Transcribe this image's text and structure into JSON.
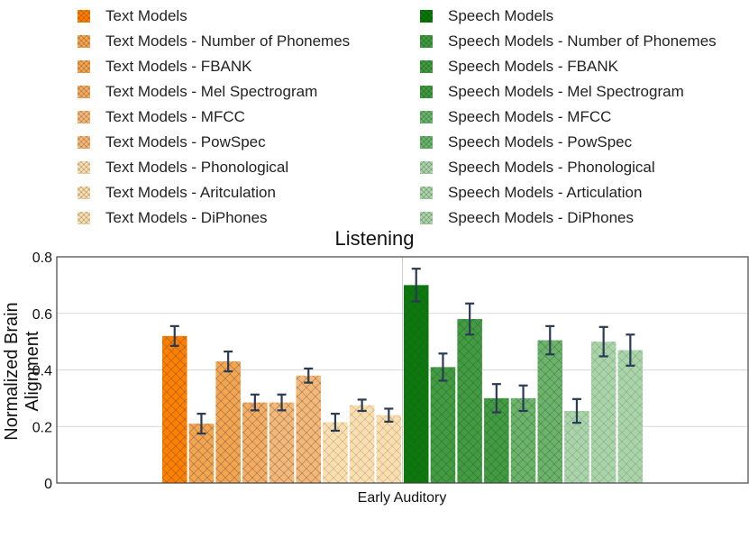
{
  "chart_data": {
    "type": "bar",
    "title": "Listening",
    "xlabel": "",
    "ylabel": "Normalized Brain Alignment",
    "categories": [
      "Early Auditory"
    ],
    "ylim": [
      0,
      0.8
    ],
    "yticks": [
      0,
      0.2,
      0.4,
      0.6,
      0.8
    ],
    "ytick_labels": [
      "0",
      "0.2",
      "0.4",
      "0.6",
      "0.8"
    ],
    "grid": true,
    "legend_position": "top",
    "series": [
      {
        "name": "Text Models",
        "value": 0.52,
        "err": 0.035,
        "color": "#ff8000",
        "hatch": "dense",
        "group": "text"
      },
      {
        "name": "Text Models - Number of Phonemes",
        "value": 0.21,
        "err": 0.035,
        "color": "#f4a550",
        "hatch": "dense",
        "group": "text"
      },
      {
        "name": "Text Models - FBANK",
        "value": 0.43,
        "err": 0.035,
        "color": "#f4a550",
        "hatch": "dense",
        "group": "text"
      },
      {
        "name": "Text Models - Mel Spectrogram",
        "value": 0.285,
        "err": 0.028,
        "color": "#f4ad62",
        "hatch": "dense",
        "group": "text"
      },
      {
        "name": "Text Models - MFCC",
        "value": 0.285,
        "err": 0.028,
        "color": "#f6b877",
        "hatch": "dense",
        "group": "text"
      },
      {
        "name": "Text Models - PowSpec",
        "value": 0.38,
        "err": 0.025,
        "color": "#f6b877",
        "hatch": "dense",
        "group": "text"
      },
      {
        "name": "Text Models - Phonological",
        "value": 0.215,
        "err": 0.03,
        "color": "#fbdfae",
        "hatch": "light",
        "group": "text"
      },
      {
        "name": "Text Models - Aritculation",
        "value": 0.275,
        "err": 0.02,
        "color": "#fbdfae",
        "hatch": "light",
        "group": "text"
      },
      {
        "name": "Text Models - DiPhones",
        "value": 0.24,
        "err": 0.023,
        "color": "#fbdfae",
        "hatch": "light",
        "group": "text"
      },
      {
        "name": "Speech Models",
        "value": 0.7,
        "err": 0.058,
        "color": "#0a7a0a",
        "hatch": "dense",
        "group": "speech"
      },
      {
        "name": "Speech Models - Number of Phonemes",
        "value": 0.41,
        "err": 0.048,
        "color": "#3f9c3f",
        "hatch": "dense",
        "group": "speech"
      },
      {
        "name": "Speech Models - FBANK",
        "value": 0.58,
        "err": 0.055,
        "color": "#3f9c3f",
        "hatch": "dense",
        "group": "speech"
      },
      {
        "name": "Speech Models - Mel Spectrogram",
        "value": 0.3,
        "err": 0.05,
        "color": "#3f9c3f",
        "hatch": "dense",
        "group": "speech"
      },
      {
        "name": "Speech Models - MFCC",
        "value": 0.3,
        "err": 0.045,
        "color": "#6ab56a",
        "hatch": "dense",
        "group": "speech"
      },
      {
        "name": "Speech Models - PowSpec",
        "value": 0.505,
        "err": 0.05,
        "color": "#6ab56a",
        "hatch": "dense",
        "group": "speech"
      },
      {
        "name": "Speech Models - Phonological",
        "value": 0.255,
        "err": 0.042,
        "color": "#a9d5a9",
        "hatch": "light",
        "group": "speech"
      },
      {
        "name": "Speech Models - Articulation",
        "value": 0.5,
        "err": 0.052,
        "color": "#a9d5a9",
        "hatch": "light",
        "group": "speech"
      },
      {
        "name": "Speech Models - DiPhones",
        "value": 0.47,
        "err": 0.055,
        "color": "#a9d5a9",
        "hatch": "light",
        "group": "speech"
      }
    ]
  }
}
